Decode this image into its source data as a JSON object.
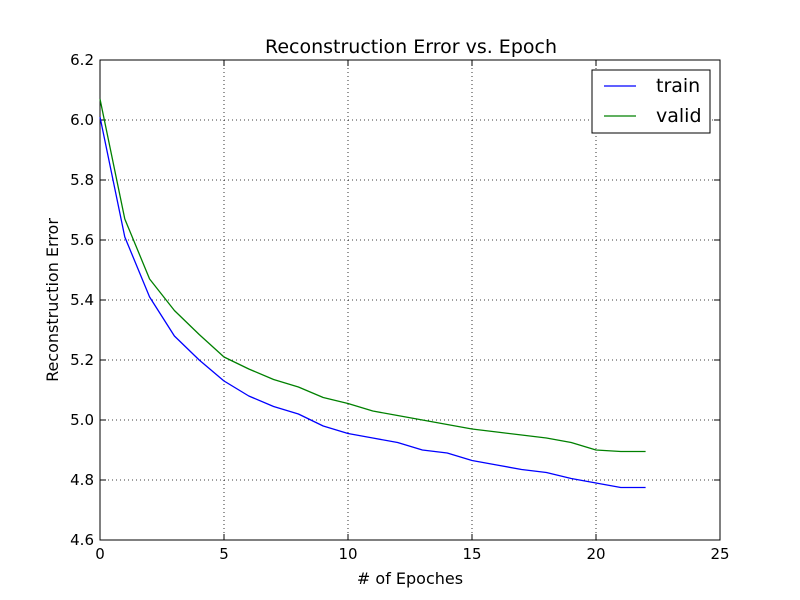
{
  "chart_data": {
    "type": "line",
    "title": "Reconstruction Error vs. Epoch",
    "xlabel": "# of Epoches",
    "ylabel": "Reconstruction Error",
    "xlim": [
      0,
      25
    ],
    "ylim": [
      4.6,
      6.2
    ],
    "xticks": [
      0,
      5,
      10,
      15,
      20,
      25
    ],
    "yticks": [
      4.6,
      4.8,
      5.0,
      5.2,
      5.4,
      5.6,
      5.8,
      6.0,
      6.2
    ],
    "xtick_labels": [
      "0",
      "5",
      "10",
      "15",
      "20",
      "25"
    ],
    "ytick_labels": [
      "4.6",
      "4.8",
      "5.0",
      "5.2",
      "5.4",
      "5.6",
      "5.8",
      "6.0",
      "6.2"
    ],
    "grid": true,
    "legend_position": "top-right",
    "x": [
      0,
      1,
      2,
      3,
      4,
      5,
      6,
      7,
      8,
      9,
      10,
      11,
      12,
      13,
      14,
      15,
      16,
      17,
      18,
      19,
      20,
      21,
      22
    ],
    "series": [
      {
        "name": "train",
        "color": "#0000ff",
        "values": [
          6.01,
          5.61,
          5.41,
          5.28,
          5.2,
          5.13,
          5.08,
          5.045,
          5.02,
          4.98,
          4.955,
          4.94,
          4.925,
          4.9,
          4.89,
          4.865,
          4.85,
          4.835,
          4.825,
          4.805,
          4.79,
          4.775,
          4.775
        ]
      },
      {
        "name": "valid",
        "color": "#008000",
        "values": [
          6.07,
          5.67,
          5.47,
          5.365,
          5.285,
          5.21,
          5.17,
          5.135,
          5.11,
          5.075,
          5.055,
          5.03,
          5.015,
          5.0,
          4.985,
          4.97,
          4.96,
          4.95,
          4.94,
          4.925,
          4.9,
          4.895,
          4.895
        ]
      }
    ]
  }
}
